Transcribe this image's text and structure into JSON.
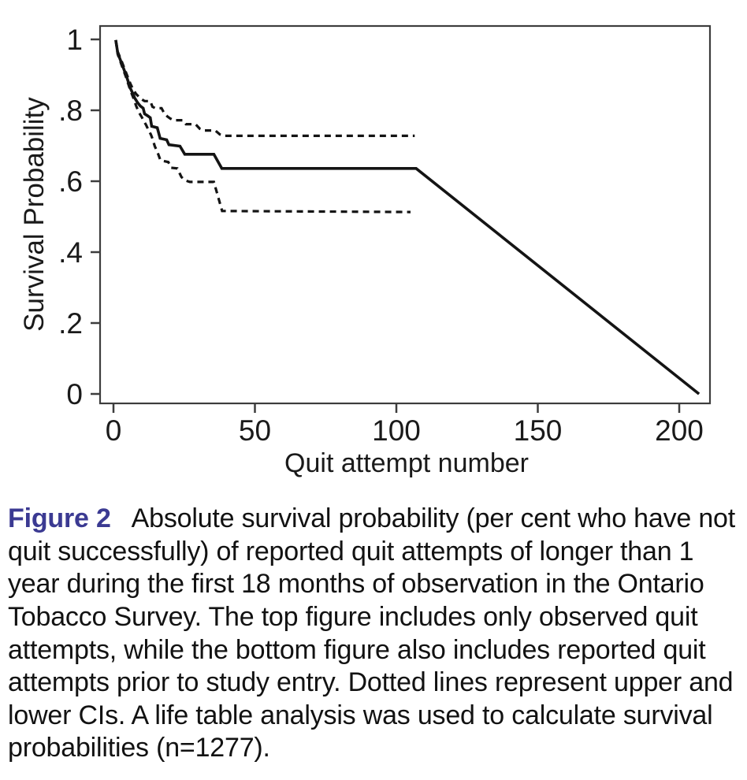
{
  "page": {
    "background": "#ffffff"
  },
  "figure": {
    "caption_label": "Figure 2",
    "caption_label_color": "#3b3a92",
    "caption_text": "Absolute survival probability (per cent who have not quit successfully) of reported quit attempts of longer than 1 year during the first 18 months of observation in the Ontario Tobacco Survey. The top figure includes only observed quit attempts, while the bottom figure also includes reported quit attempts prior to study entry. Dotted lines represent upper and lower CIs. A life table analysis was used to calculate survival probabilities (n=1277)."
  },
  "chart_data": {
    "type": "line",
    "title": "",
    "xlabel": "Quit attempt number",
    "ylabel": "Survival Probability",
    "x_ticks": [
      0,
      50,
      100,
      150,
      200
    ],
    "x_tick_labels": [
      "0",
      "50",
      "100",
      "150",
      "200"
    ],
    "y_ticks": [
      0,
      0.2,
      0.4,
      0.6,
      0.8,
      1
    ],
    "y_tick_labels": [
      "0",
      ".2",
      ".4",
      ".6",
      ".8",
      "1"
    ],
    "xlim": [
      -4.7,
      210.9
    ],
    "ylim": [
      -0.027,
      1.04
    ],
    "grid": false,
    "legend": "none",
    "frame_color": "#3d3d3d",
    "line_color": "#141414",
    "text_color": "#1a1a1a",
    "series": [
      {
        "name": "survival-estimate",
        "label": "Survival probability (solid line)",
        "style": "solid",
        "points": [
          [
            0.8,
            0.998
          ],
          [
            1.5,
            0.962
          ],
          [
            3,
            0.93
          ],
          [
            4.5,
            0.898
          ],
          [
            6,
            0.862
          ],
          [
            7,
            0.845
          ],
          [
            7.5,
            0.835
          ],
          [
            8.5,
            0.822
          ],
          [
            9.5,
            0.812
          ],
          [
            10.5,
            0.806
          ],
          [
            11,
            0.79
          ],
          [
            12,
            0.785
          ],
          [
            13,
            0.779
          ],
          [
            13.5,
            0.755
          ],
          [
            15.5,
            0.751
          ],
          [
            16.5,
            0.721
          ],
          [
            18.8,
            0.717
          ],
          [
            19.6,
            0.703
          ],
          [
            23.5,
            0.699
          ],
          [
            25.2,
            0.676
          ],
          [
            35.5,
            0.676
          ],
          [
            38.3,
            0.636
          ],
          [
            107,
            0.636
          ],
          [
            207,
            0
          ]
        ]
      },
      {
        "name": "upper-ci",
        "label": "Upper CI (dotted line)",
        "style": "dashed",
        "points": [
          [
            0.8,
            0.998
          ],
          [
            1.5,
            0.965
          ],
          [
            3,
            0.936
          ],
          [
            4.5,
            0.905
          ],
          [
            6,
            0.875
          ],
          [
            7,
            0.858
          ],
          [
            8,
            0.846
          ],
          [
            9,
            0.838
          ],
          [
            10,
            0.831
          ],
          [
            11,
            0.826
          ],
          [
            13,
            0.826
          ],
          [
            13.8,
            0.81
          ],
          [
            14.8,
            0.806
          ],
          [
            17,
            0.806
          ],
          [
            18,
            0.791
          ],
          [
            19,
            0.783
          ],
          [
            20,
            0.777
          ],
          [
            21.2,
            0.772
          ],
          [
            24.5,
            0.772
          ],
          [
            25.6,
            0.761
          ],
          [
            29,
            0.761
          ],
          [
            30.5,
            0.748
          ],
          [
            32,
            0.743
          ],
          [
            36,
            0.743
          ],
          [
            37.6,
            0.732
          ],
          [
            39,
            0.728
          ],
          [
            106.5,
            0.728
          ]
        ]
      },
      {
        "name": "lower-ci",
        "label": "Lower CI (dotted line)",
        "style": "dashed",
        "points": [
          [
            0.8,
            0.998
          ],
          [
            1.5,
            0.958
          ],
          [
            3,
            0.925
          ],
          [
            4.5,
            0.892
          ],
          [
            6,
            0.856
          ],
          [
            7,
            0.836
          ],
          [
            8,
            0.813
          ],
          [
            9,
            0.794
          ],
          [
            10,
            0.781
          ],
          [
            10.6,
            0.771
          ],
          [
            11.5,
            0.759
          ],
          [
            12.5,
            0.742
          ],
          [
            13.2,
            0.732
          ],
          [
            13.8,
            0.72
          ],
          [
            14.6,
            0.699
          ],
          [
            15.6,
            0.681
          ],
          [
            16.6,
            0.659
          ],
          [
            19.4,
            0.654
          ],
          [
            20.4,
            0.638
          ],
          [
            22.6,
            0.636
          ],
          [
            24,
            0.612
          ],
          [
            25.2,
            0.603
          ],
          [
            27,
            0.598
          ],
          [
            35.5,
            0.598
          ],
          [
            38.4,
            0.516
          ],
          [
            105,
            0.513
          ]
        ]
      }
    ]
  }
}
